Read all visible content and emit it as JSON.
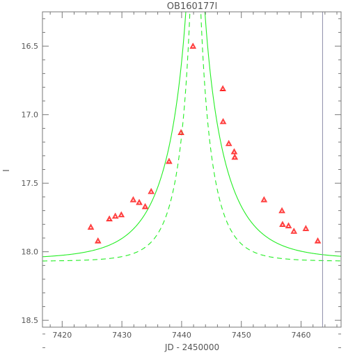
{
  "chart_data": {
    "type": "scatter",
    "title": "OB160177l",
    "xlabel": "JD - 2450000",
    "ylabel": "I",
    "xlim": [
      7416.7,
      7466.7
    ],
    "ylim": [
      18.55,
      16.25
    ],
    "y_inverted": true,
    "grid": false,
    "legend": "none",
    "x_ticks": [
      7420,
      7430,
      7440,
      7450,
      7460
    ],
    "y_ticks": [
      16.5,
      17.0,
      17.5,
      18.0,
      18.5
    ],
    "y_tick_labels": [
      "16.5",
      "17.0",
      "17.5",
      "18.0",
      "18.5"
    ],
    "vertical_line_x": 7463.6,
    "colors": {
      "points": "#ff2020",
      "model": "#22ee22",
      "frame": "#777777",
      "vline": "#8a8aa8"
    },
    "series": [
      {
        "kind": "points",
        "marker": "triangle",
        "x": [
          7424.8,
          7426.0,
          7427.9,
          7428.9,
          7429.9,
          7431.9,
          7432.9,
          7433.9,
          7434.9,
          7437.9,
          7439.9,
          7441.9,
          7446.9,
          7446.95,
          7447.9,
          7448.8,
          7448.9,
          7453.8,
          7456.8,
          7456.9,
          7457.9,
          7458.8,
          7460.8,
          7462.8
        ],
        "y": [
          17.82,
          17.92,
          17.76,
          17.74,
          17.73,
          17.62,
          17.64,
          17.67,
          17.56,
          17.34,
          17.13,
          16.5,
          16.81,
          17.05,
          17.21,
          17.27,
          17.31,
          17.62,
          17.7,
          17.8,
          17.81,
          17.85,
          17.83,
          17.92
        ]
      },
      {
        "kind": "model",
        "style": "solid",
        "t0": 7442.3,
        "tE": 8.6,
        "u0": 0.05,
        "I_base": 18.055
      },
      {
        "kind": "model",
        "style": "dashed",
        "t0": 7442.3,
        "tE": 5.0,
        "u0": 0.05,
        "I_base": 18.07
      }
    ]
  }
}
